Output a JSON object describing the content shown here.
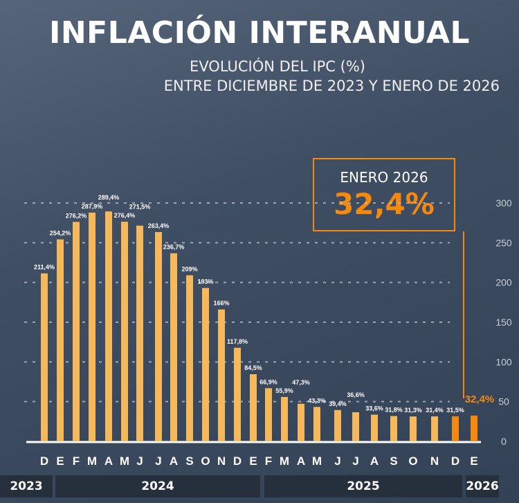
{
  "chart_data": {
    "type": "bar",
    "title": "INFLACIÓN INTERANUAL",
    "subtitle_1": "EVOLUCIÓN DEL IPC (%)",
    "subtitle_2": "ENTRE DICIEMBRE DE 2023 Y ENERO DE 2026",
    "categories": [
      "D",
      "E",
      "F",
      "M",
      "A",
      "M",
      "J",
      "J",
      "A",
      "S",
      "O",
      "N",
      "D",
      "E",
      "F",
      "M",
      "A",
      "M",
      "J",
      "J",
      "A",
      "S",
      "O",
      "N",
      "D",
      "E"
    ],
    "values": [
      211.4,
      254.2,
      276.2,
      287.9,
      289.4,
      276.4,
      271.5,
      263.4,
      236.7,
      209,
      193,
      166,
      117.8,
      84.5,
      66.9,
      55.9,
      47.3,
      43.3,
      39.4,
      36.6,
      33.6,
      31.8,
      31.3,
      31.4,
      31.5,
      32.4
    ],
    "data_labels": [
      "211,4%",
      "254,2%",
      "276,2%",
      "287,9%",
      "289,4%",
      "276,4%",
      "271,5%",
      "263,4%",
      "236,7%",
      "209%",
      "193%",
      "166%",
      "117,8%",
      "84,5%",
      "66,9%",
      "55,9%",
      "47,3%",
      "43,3%",
      "39,4%",
      "36,6%",
      "33,6%",
      "31,8%",
      "31,3%",
      "31,4%",
      "31,5%",
      "32,4%"
    ],
    "highlighted": [
      24,
      25
    ],
    "years": [
      "2023",
      "2024",
      "2025",
      "2026"
    ],
    "yticks": [
      "0",
      "50",
      "100",
      "150",
      "200",
      "250",
      "300"
    ],
    "ylim": [
      0,
      300
    ],
    "grid": true,
    "callout": {
      "label": "ENERO 2026",
      "value": "32,4%"
    },
    "colors": {
      "bar": "#f5b95c",
      "highlight": "#f5890f",
      "background": "#3f4e62"
    }
  }
}
